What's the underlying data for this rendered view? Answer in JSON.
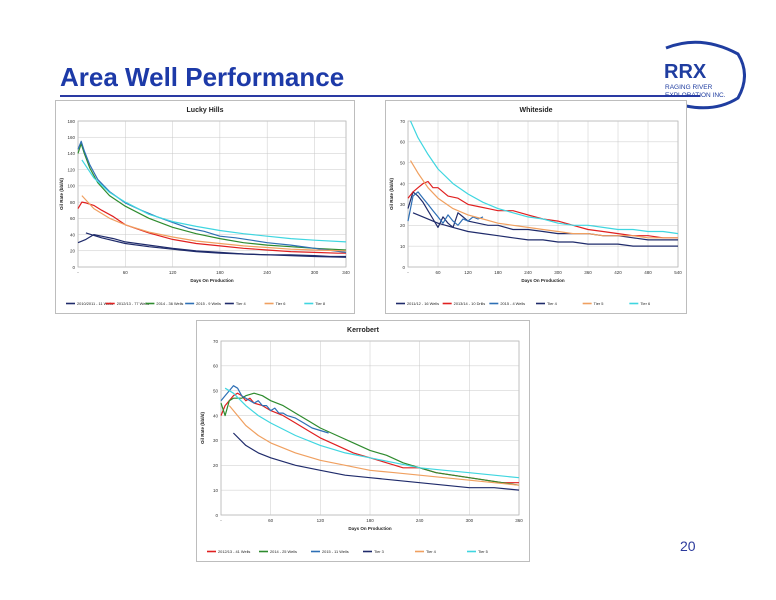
{
  "slide": {
    "title": "Area Well Performance",
    "page_number": "20",
    "logo": {
      "main": "RRX",
      "line1": "RAGING RIVER",
      "line2": "EXPLORATION INC.",
      "accent": "#1f3da0"
    }
  },
  "chart_data": [
    {
      "type": "line",
      "title": "Lucky Hills",
      "xlabel": "Days On Production",
      "ylabel": "Oil Rate (bbl/d)",
      "xlim": [
        0,
        340
      ],
      "ylim": [
        0,
        180
      ],
      "xticks": [
        "-",
        "60",
        "120",
        "180",
        "240",
        "300",
        "340"
      ],
      "xtick_values": [
        0,
        60,
        120,
        180,
        240,
        300,
        340
      ],
      "yticks": [
        0,
        20,
        40,
        60,
        80,
        100,
        120,
        140,
        160,
        180
      ],
      "grid": true,
      "legend": "bottom",
      "series": [
        {
          "name": "2010/2011 - 11 Wells",
          "color": "#1f2b6b",
          "x": [
            0,
            10,
            20,
            30,
            45,
            60,
            90,
            120,
            150,
            180,
            210,
            240,
            270,
            300,
            320,
            340
          ],
          "values": [
            30,
            34,
            40,
            38,
            35,
            31,
            27,
            23,
            20,
            18,
            16,
            15,
            15,
            14,
            13,
            13
          ]
        },
        {
          "name": "2012/13 - 77 Wells",
          "color": "#e02020",
          "x": [
            0,
            5,
            10,
            20,
            30,
            45,
            60,
            90,
            120,
            150,
            180,
            210,
            240,
            270,
            300,
            330,
            340
          ],
          "values": [
            72,
            80,
            79,
            76,
            70,
            62,
            52,
            42,
            34,
            29,
            26,
            23,
            21,
            19,
            18,
            17,
            17
          ]
        },
        {
          "name": "2014 - 36 Wells",
          "color": "#2e8b2e",
          "x": [
            0,
            4,
            8,
            15,
            25,
            40,
            60,
            90,
            120,
            150,
            180,
            210,
            240,
            270,
            300,
            340
          ],
          "values": [
            140,
            152,
            140,
            122,
            104,
            88,
            75,
            60,
            49,
            41,
            35,
            30,
            27,
            25,
            23,
            21
          ]
        },
        {
          "name": "2015 - 9 Wells",
          "color": "#2e6fb5",
          "x": [
            0,
            4,
            8,
            15,
            25,
            40,
            60,
            80,
            100,
            120,
            140,
            160,
            180,
            200,
            220,
            240,
            270,
            300,
            340
          ],
          "values": [
            145,
            155,
            143,
            126,
            108,
            93,
            79,
            70,
            62,
            55,
            48,
            44,
            38,
            36,
            33,
            30,
            27,
            23,
            18
          ]
        },
        {
          "name": "Tier 4",
          "color": "#1f2b6b",
          "x": [
            10,
            30,
            60,
            90,
            120,
            150,
            180,
            210,
            240,
            270,
            300,
            340
          ],
          "values": [
            42,
            36,
            29,
            25,
            22,
            19,
            17,
            16,
            15,
            14,
            13,
            12
          ]
        },
        {
          "name": "Tier 6",
          "color": "#f0a060",
          "x": [
            5,
            20,
            40,
            60,
            90,
            120,
            150,
            180,
            210,
            240,
            270,
            300,
            340
          ],
          "values": [
            88,
            72,
            60,
            52,
            43,
            37,
            32,
            29,
            26,
            24,
            22,
            21,
            20
          ]
        },
        {
          "name": "Tier 8",
          "color": "#3fd6e0",
          "x": [
            5,
            20,
            40,
            60,
            90,
            120,
            150,
            180,
            210,
            240,
            270,
            300,
            340
          ],
          "values": [
            132,
            110,
            92,
            80,
            65,
            56,
            50,
            45,
            41,
            38,
            35,
            33,
            31
          ]
        }
      ]
    },
    {
      "type": "line",
      "title": "Whiteside",
      "xlabel": "Days On Production",
      "ylabel": "Oil Rate (bbl/d)",
      "xlim": [
        0,
        540
      ],
      "ylim": [
        0,
        70
      ],
      "xticks": [
        "-",
        "60",
        "120",
        "180",
        "240",
        "300",
        "360",
        "420",
        "480",
        "540"
      ],
      "xtick_values": [
        0,
        60,
        120,
        180,
        240,
        300,
        360,
        420,
        480,
        540
      ],
      "yticks": [
        0,
        10,
        20,
        30,
        40,
        50,
        60,
        70
      ],
      "grid": true,
      "legend": "bottom",
      "series": [
        {
          "name": "2011/12 - 16 Wells",
          "color": "#1f2b6b",
          "x": [
            0,
            10,
            20,
            30,
            40,
            50,
            60,
            70,
            80,
            90,
            100,
            110,
            120,
            140,
            160,
            180,
            210,
            240,
            270,
            300,
            330,
            360,
            390,
            420,
            450,
            480,
            510,
            540
          ],
          "values": [
            28,
            36,
            34,
            31,
            27,
            23,
            19,
            24,
            21,
            19,
            26,
            24,
            22,
            21,
            20,
            20,
            18,
            18,
            17,
            16,
            16,
            16,
            15,
            15,
            14,
            13,
            13,
            13
          ]
        },
        {
          "name": "2013/14 - 10 Drills",
          "color": "#e02020",
          "x": [
            0,
            10,
            20,
            30,
            40,
            50,
            60,
            80,
            100,
            120,
            140,
            160,
            180,
            210,
            240,
            270,
            300,
            330,
            360,
            390,
            420,
            450,
            480,
            510,
            540
          ],
          "values": [
            33,
            36,
            38,
            40,
            41,
            38,
            38,
            34,
            33,
            30,
            29,
            28,
            27,
            27,
            25,
            23,
            22,
            20,
            18,
            17,
            16,
            15,
            15,
            14,
            14
          ]
        },
        {
          "name": "2015 - 4 Wells",
          "color": "#2e6fb5",
          "x": [
            0,
            10,
            20,
            30,
            40,
            50,
            60,
            70,
            80,
            90,
            100,
            110,
            120,
            130,
            140,
            150
          ],
          "values": [
            22,
            34,
            36,
            33,
            30,
            27,
            24,
            21,
            25,
            22,
            20,
            23,
            22,
            24,
            23,
            24
          ]
        },
        {
          "name": "Tier 4",
          "color": "#1f2b6b",
          "x": [
            10,
            30,
            60,
            90,
            120,
            150,
            180,
            210,
            240,
            270,
            300,
            330,
            360,
            390,
            420,
            450,
            480,
            510,
            540
          ],
          "values": [
            26,
            24,
            21,
            19,
            17,
            16,
            15,
            14,
            13,
            13,
            12,
            12,
            11,
            11,
            11,
            10,
            10,
            10,
            10
          ]
        },
        {
          "name": "Tier 5",
          "color": "#f0a060",
          "x": [
            5,
            20,
            40,
            60,
            90,
            120,
            150,
            180,
            210,
            240,
            270,
            300,
            330,
            360,
            390,
            420,
            450,
            480,
            510,
            540
          ],
          "values": [
            51,
            45,
            38,
            33,
            28,
            25,
            23,
            21,
            20,
            19,
            18,
            17,
            16,
            16,
            15,
            15,
            15,
            14,
            14,
            14
          ]
        },
        {
          "name": "Tier 6",
          "color": "#3fd6e0",
          "x": [
            5,
            20,
            40,
            60,
            90,
            120,
            150,
            180,
            210,
            240,
            270,
            300,
            330,
            360,
            390,
            420,
            450,
            480,
            510,
            540
          ],
          "values": [
            70,
            62,
            54,
            47,
            40,
            35,
            31,
            28,
            26,
            24,
            23,
            21,
            20,
            20,
            19,
            18,
            18,
            17,
            17,
            16
          ]
        }
      ]
    },
    {
      "type": "line",
      "title": "Kerrobert",
      "xlabel": "Days On Production",
      "ylabel": "Oil Rate (bbl/d)",
      "xlim": [
        0,
        360
      ],
      "ylim": [
        0,
        70
      ],
      "xticks": [
        "-",
        "60",
        "120",
        "180",
        "240",
        "300",
        "360"
      ],
      "xtick_values": [
        0,
        60,
        120,
        180,
        240,
        300,
        360
      ],
      "yticks": [
        0,
        10,
        20,
        30,
        40,
        50,
        60,
        70
      ],
      "grid": true,
      "legend": "bottom",
      "series": [
        {
          "name": "2012/13 - 41 Wells",
          "color": "#e02020",
          "x": [
            0,
            5,
            10,
            15,
            20,
            25,
            30,
            35,
            40,
            50,
            60,
            75,
            90,
            105,
            120,
            140,
            160,
            180,
            200,
            220,
            240,
            260,
            280,
            300,
            320,
            340,
            360
          ],
          "values": [
            40,
            44,
            46,
            48,
            49,
            48,
            46,
            47,
            45,
            44,
            42,
            40,
            37,
            34,
            31,
            28,
            25,
            23,
            21,
            19,
            19,
            17,
            16,
            15,
            14,
            13,
            13
          ]
        },
        {
          "name": "2014 - 25 Wells",
          "color": "#2e8b2e",
          "x": [
            0,
            5,
            10,
            15,
            20,
            25,
            30,
            40,
            50,
            60,
            75,
            90,
            105,
            120,
            140,
            160,
            180,
            200,
            220,
            240,
            260,
            280,
            300,
            320,
            340,
            360
          ],
          "values": [
            45,
            40,
            46,
            47,
            47,
            47,
            48,
            49,
            48,
            46,
            44,
            41,
            38,
            35,
            32,
            29,
            26,
            24,
            21,
            19,
            17,
            16,
            15,
            14,
            13,
            12
          ]
        },
        {
          "name": "2015 - 11 Wells",
          "color": "#2e6fb5",
          "x": [
            0,
            5,
            10,
            15,
            20,
            25,
            30,
            35,
            40,
            45,
            50,
            55,
            60,
            65,
            70,
            75,
            80,
            90,
            100,
            110,
            120,
            130
          ],
          "values": [
            46,
            48,
            50,
            52,
            51,
            48,
            47,
            46,
            45,
            46,
            44,
            44,
            42,
            43,
            41,
            41,
            40,
            39,
            37,
            35,
            34,
            33
          ]
        },
        {
          "name": "Tier 3",
          "color": "#1f2b6b",
          "x": [
            15,
            30,
            45,
            60,
            90,
            120,
            150,
            180,
            210,
            240,
            270,
            300,
            330,
            360
          ],
          "values": [
            33,
            28,
            25,
            23,
            20,
            18,
            16,
            15,
            14,
            13,
            12,
            11,
            11,
            10
          ]
        },
        {
          "name": "Tier 4",
          "color": "#f0a060",
          "x": [
            10,
            20,
            30,
            45,
            60,
            90,
            120,
            150,
            180,
            210,
            240,
            270,
            300,
            330,
            360
          ],
          "values": [
            44,
            40,
            36,
            32,
            29,
            25,
            22,
            20,
            18,
            17,
            16,
            15,
            14,
            13,
            12
          ]
        },
        {
          "name": "Tier 5",
          "color": "#3fd6e0",
          "x": [
            5,
            15,
            30,
            45,
            60,
            90,
            120,
            150,
            180,
            210,
            240,
            270,
            300,
            330,
            360
          ],
          "values": [
            51,
            49,
            44,
            40,
            37,
            32,
            28,
            25,
            23,
            21,
            19,
            18,
            17,
            16,
            15
          ]
        }
      ]
    }
  ]
}
